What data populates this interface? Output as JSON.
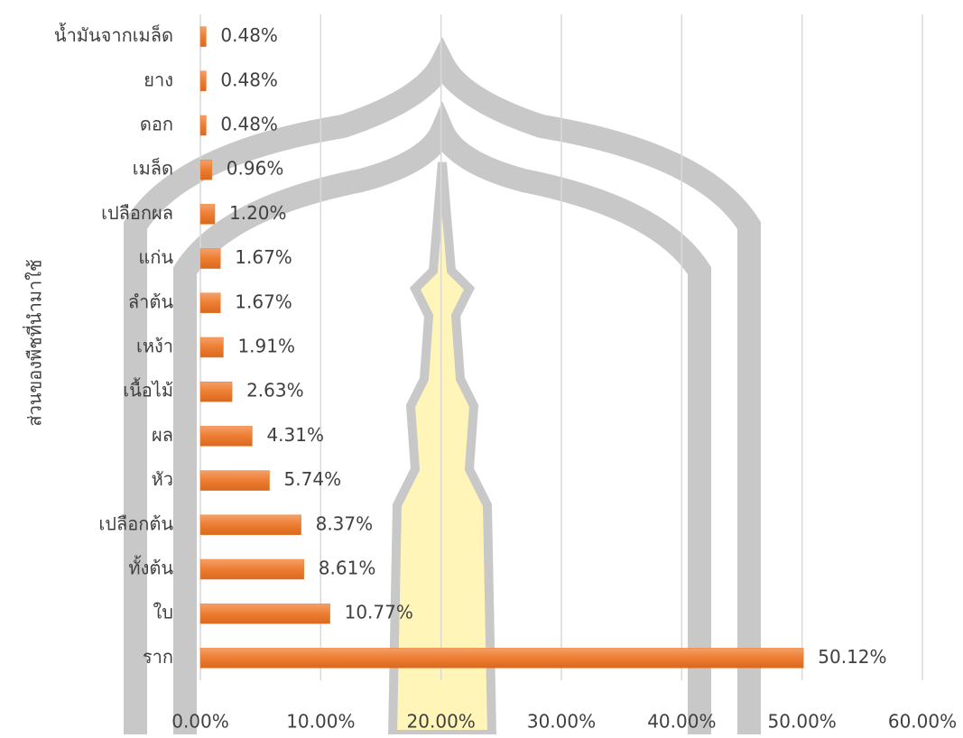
{
  "chart_data": {
    "type": "bar",
    "orientation": "horizontal",
    "y_axis_label": "ส่วนของพืชที่นำมาใช้",
    "categories": [
      "น้ำมันจากเมล็ด",
      "ยาง",
      "ดอก",
      "เมล็ด",
      "เปลือกผล",
      "แก่น",
      "ลำต้น",
      "เหง้า",
      "เนื้อไม้",
      "ผล",
      "หัว",
      "เปลือกต้น",
      "ทั้งต้น",
      "ใบ",
      "ราก"
    ],
    "values": [
      0.48,
      0.48,
      0.48,
      0.96,
      1.2,
      1.67,
      1.67,
      1.91,
      2.63,
      4.31,
      5.74,
      8.37,
      8.61,
      10.77,
      50.12
    ],
    "value_labels": [
      "0.48%",
      "0.48%",
      "0.48%",
      "0.96%",
      "1.20%",
      "1.67%",
      "1.67%",
      "1.91%",
      "2.63%",
      "4.31%",
      "5.74%",
      "8.37%",
      "8.61%",
      "10.77%",
      "50.12%"
    ],
    "color": "#ed7d31",
    "xlim": [
      0,
      60
    ],
    "xticks": [
      {
        "value": 0,
        "label": "0.00%"
      },
      {
        "value": 10,
        "label": "10.00%"
      },
      {
        "value": 20,
        "label": "20.00%"
      },
      {
        "value": 30,
        "label": "30.00%"
      },
      {
        "value": 40,
        "label": "40.00%"
      },
      {
        "value": 50,
        "label": "50.00%"
      },
      {
        "value": 60,
        "label": "60.00%"
      }
    ],
    "grid": true
  }
}
